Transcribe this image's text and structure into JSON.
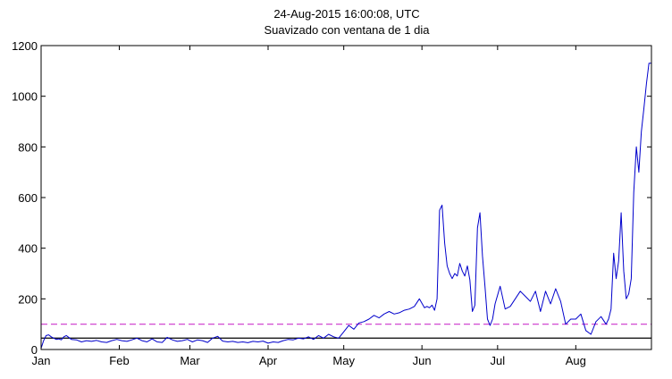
{
  "chart_data": {
    "type": "line",
    "title": "24-Aug-2015 16:00:08, UTC",
    "subtitle": "Suavizado con ventana de 1 dia",
    "xlabel": "",
    "ylabel": "",
    "x_range_days": [
      0,
      242
    ],
    "ylim": [
      0,
      1200
    ],
    "grid": false,
    "x_ticks": [
      {
        "label": "Jan",
        "day": 0
      },
      {
        "label": "Feb",
        "day": 31
      },
      {
        "label": "Mar",
        "day": 59
      },
      {
        "label": "Apr",
        "day": 90
      },
      {
        "label": "May",
        "day": 120
      },
      {
        "label": "Jun",
        "day": 151
      },
      {
        "label": "Jul",
        "day": 181
      },
      {
        "label": "Aug",
        "day": 212
      }
    ],
    "y_ticks": [
      0,
      200,
      400,
      600,
      800,
      1000,
      1200
    ],
    "series": [
      {
        "color": "#0000cc",
        "x": [
          0,
          1,
          2,
          3,
          4,
          5,
          6,
          7,
          8,
          9,
          10,
          12,
          14,
          16,
          18,
          20,
          22,
          24,
          26,
          28,
          30,
          32,
          34,
          36,
          38,
          40,
          42,
          44,
          46,
          48,
          50,
          52,
          54,
          56,
          58,
          60,
          62,
          64,
          66,
          68,
          70,
          72,
          74,
          76,
          78,
          80,
          82,
          84,
          86,
          88,
          90,
          92,
          94,
          96,
          98,
          100,
          102,
          104,
          106,
          108,
          110,
          112,
          114,
          116,
          118,
          120,
          122,
          124,
          126,
          128,
          130,
          132,
          134,
          136,
          138,
          140,
          142,
          144,
          146,
          148,
          150,
          152,
          153,
          154,
          155,
          156,
          157,
          158,
          159,
          160,
          161,
          162,
          163,
          164,
          165,
          166,
          167,
          168,
          169,
          170,
          171,
          172,
          173,
          174,
          175,
          176,
          177,
          178,
          179,
          180,
          182,
          184,
          186,
          188,
          190,
          192,
          194,
          196,
          198,
          200,
          202,
          204,
          206,
          208,
          210,
          212,
          214,
          216,
          218,
          220,
          222,
          224,
          225,
          226,
          227,
          228,
          229,
          230,
          231,
          232,
          233,
          234,
          235,
          236,
          237,
          238,
          239,
          240,
          241,
          242
        ],
        "y": [
          5,
          35,
          55,
          58,
          50,
          45,
          40,
          42,
          38,
          50,
          55,
          40,
          38,
          30,
          35,
          32,
          36,
          30,
          28,
          35,
          40,
          35,
          32,
          38,
          45,
          35,
          30,
          42,
          30,
          28,
          48,
          38,
          32,
          35,
          40,
          30,
          38,
          35,
          28,
          45,
          52,
          33,
          30,
          32,
          28,
          30,
          27,
          32,
          30,
          33,
          25,
          30,
          28,
          35,
          40,
          38,
          45,
          42,
          50,
          40,
          55,
          45,
          60,
          50,
          45,
          70,
          95,
          80,
          105,
          110,
          120,
          135,
          125,
          140,
          150,
          140,
          145,
          155,
          160,
          170,
          200,
          165,
          170,
          165,
          175,
          155,
          200,
          550,
          570,
          420,
          330,
          300,
          280,
          300,
          290,
          340,
          310,
          290,
          330,
          275,
          150,
          175,
          480,
          540,
          370,
          250,
          120,
          95,
          120,
          180,
          250,
          160,
          170,
          200,
          230,
          210,
          190,
          230,
          150,
          230,
          180,
          240,
          190,
          100,
          120,
          120,
          140,
          75,
          60,
          110,
          130,
          100,
          120,
          160,
          380,
          280,
          350,
          540,
          310,
          200,
          220,
          280,
          620,
          800,
          700,
          860,
          950,
          1050,
          1130,
          1130
        ]
      }
    ],
    "reference_lines": [
      {
        "y": 100,
        "color": "#cc33cc",
        "style": "dashed"
      },
      {
        "y": 45,
        "color": "#000000",
        "style": "solid"
      }
    ]
  }
}
